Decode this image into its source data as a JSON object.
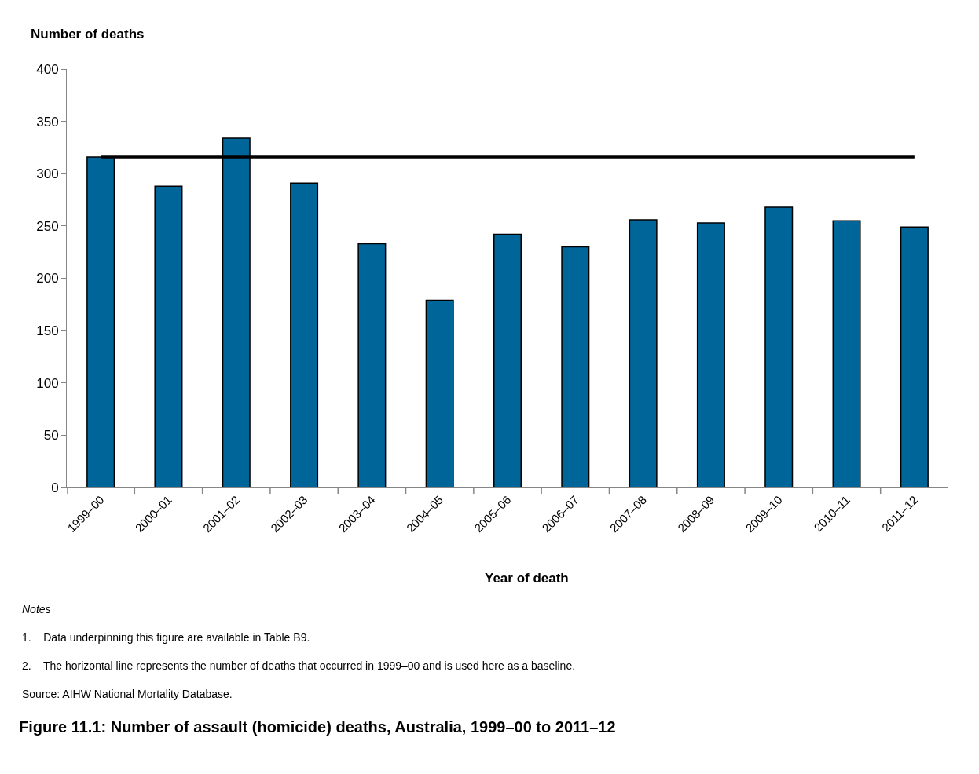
{
  "chart_data": {
    "type": "bar",
    "title": "Figure 11.1: Number of assault (homicide) deaths, Australia, 1999–00 to 2011–12",
    "xlabel": "Year of death",
    "ylabel": "Number of deaths",
    "categories": [
      "1999–00",
      "2000–01",
      "2001–02",
      "2002–03",
      "2003–04",
      "2004–05",
      "2005–06",
      "2006–07",
      "2007–08",
      "2008–09",
      "2009–10",
      "2010–11",
      "2011–12"
    ],
    "values": [
      316,
      288,
      334,
      291,
      233,
      179,
      242,
      230,
      256,
      253,
      268,
      255,
      249
    ],
    "color": "#006699",
    "ylim": [
      0,
      400
    ],
    "yticks": [
      0,
      50,
      100,
      150,
      200,
      250,
      300,
      350,
      400
    ],
    "ref_lines": [
      {
        "axis": "y",
        "value": 316,
        "color": "#000000",
        "line_style": "solid"
      }
    ],
    "annotations": [
      "Notes",
      "1.    Data underpinning this figure are available in Table B9.",
      "2.    The horizontal line represents the number of deaths that occurred in 1999–00 and is used here as a baseline.",
      "Source: AIHW National Mortality Database."
    ]
  }
}
